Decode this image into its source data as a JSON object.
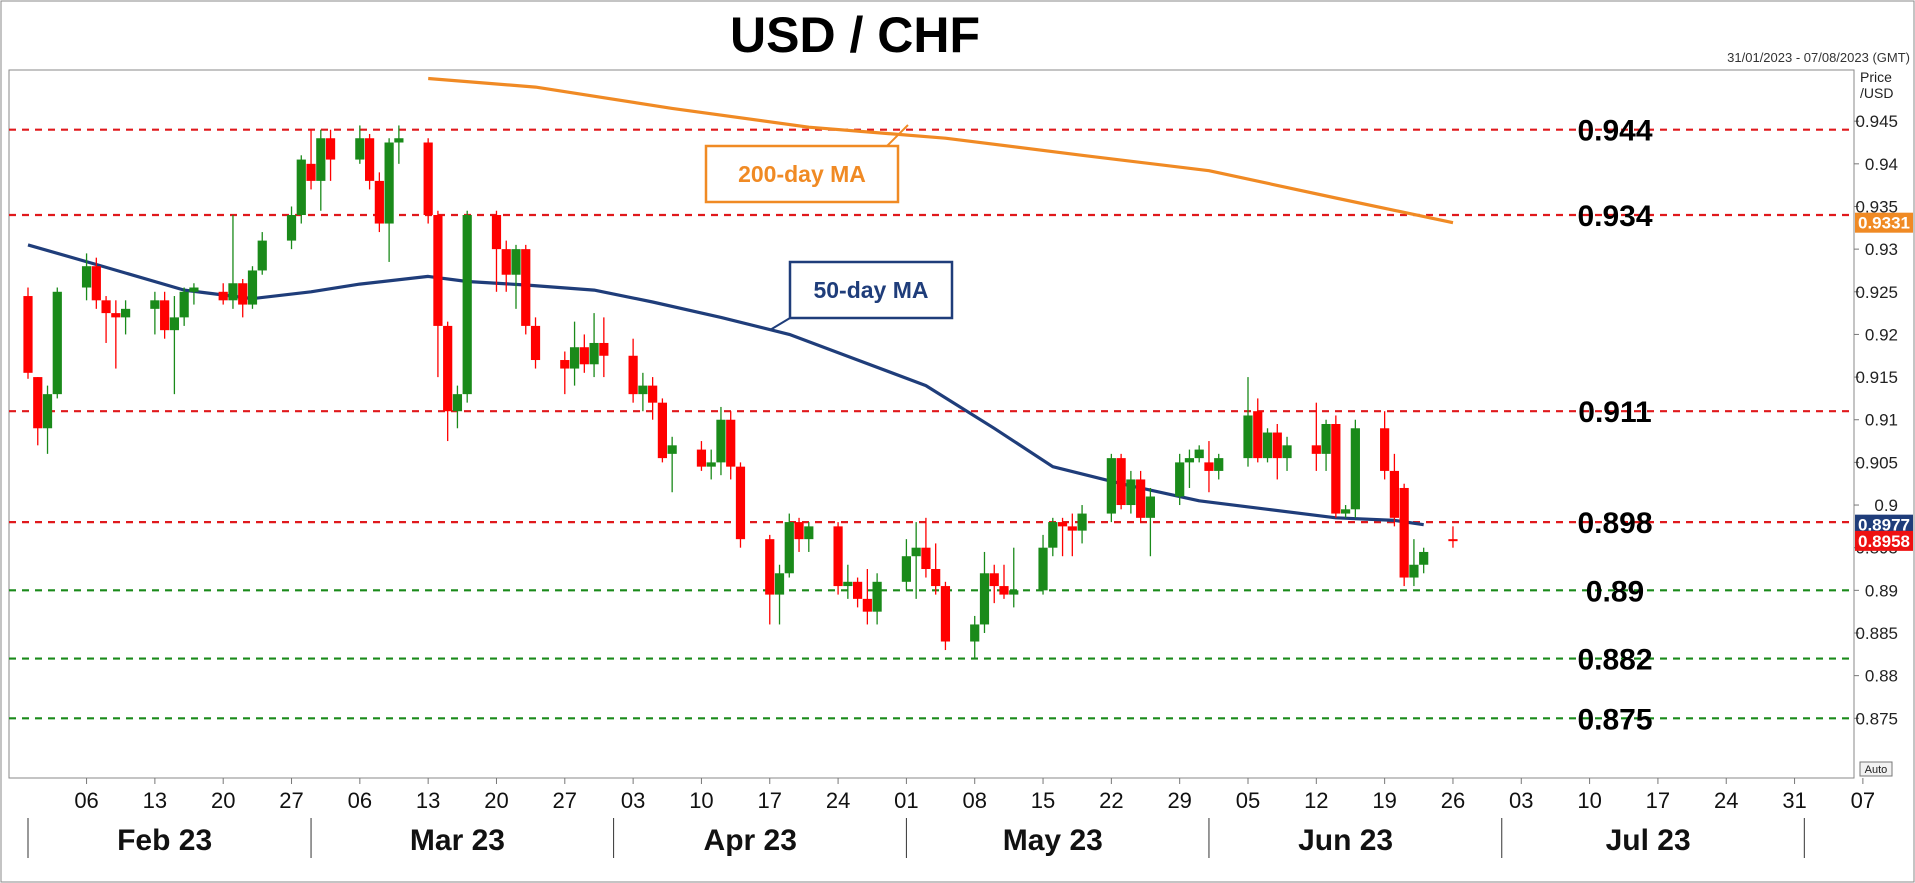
{
  "title": "USD / CHF",
  "date_range": "31/01/2023 - 07/08/2023 (GMT)",
  "axis_title_line1": "Price",
  "axis_title_line2": "/USD",
  "auto_label": "Auto",
  "colors": {
    "up": "#1a8a1a",
    "down": "#ff0000",
    "ma50": "#1f3d7a",
    "ma200": "#f08a24",
    "resistance": "#e0191c",
    "support": "#1a8a1a",
    "current_tag": "#ee1111"
  },
  "chart_data": {
    "type": "candlestick",
    "title": "USD / CHF",
    "ylim": [
      0.868,
      0.951
    ],
    "y_ticks": [
      "0.875",
      "0.88",
      "0.885",
      "0.89",
      "0.895",
      "0.9",
      "0.905",
      "0.91",
      "0.915",
      "0.92",
      "0.925",
      "0.93",
      "0.935",
      "0.94",
      "0.945"
    ],
    "x_day_ticks": [
      {
        "label": "06",
        "date": "2023-02-06"
      },
      {
        "label": "13",
        "date": "2023-02-13"
      },
      {
        "label": "20",
        "date": "2023-02-20"
      },
      {
        "label": "27",
        "date": "2023-02-27"
      },
      {
        "label": "06",
        "date": "2023-03-06"
      },
      {
        "label": "13",
        "date": "2023-03-13"
      },
      {
        "label": "20",
        "date": "2023-03-20"
      },
      {
        "label": "27",
        "date": "2023-03-27"
      },
      {
        "label": "03",
        "date": "2023-04-03"
      },
      {
        "label": "10",
        "date": "2023-04-10"
      },
      {
        "label": "17",
        "date": "2023-04-17"
      },
      {
        "label": "24",
        "date": "2023-04-24"
      },
      {
        "label": "01",
        "date": "2023-05-01"
      },
      {
        "label": "08",
        "date": "2023-05-08"
      },
      {
        "label": "15",
        "date": "2023-05-15"
      },
      {
        "label": "22",
        "date": "2023-05-22"
      },
      {
        "label": "29",
        "date": "2023-05-29"
      },
      {
        "label": "05",
        "date": "2023-06-05"
      },
      {
        "label": "12",
        "date": "2023-06-12"
      },
      {
        "label": "19",
        "date": "2023-06-19"
      },
      {
        "label": "26",
        "date": "2023-06-26"
      },
      {
        "label": "03",
        "date": "2023-07-03"
      },
      {
        "label": "10",
        "date": "2023-07-10"
      },
      {
        "label": "17",
        "date": "2023-07-17"
      },
      {
        "label": "24",
        "date": "2023-07-24"
      },
      {
        "label": "31",
        "date": "2023-07-31"
      },
      {
        "label": "07",
        "date": "2023-08-07"
      }
    ],
    "x_months": [
      {
        "label": "Feb 23",
        "date": "2023-02-14"
      },
      {
        "label": "Mar 23",
        "date": "2023-03-16"
      },
      {
        "label": "Apr 23",
        "date": "2023-04-15"
      },
      {
        "label": "May 23",
        "date": "2023-05-16"
      },
      {
        "label": "Jun 23",
        "date": "2023-06-15"
      },
      {
        "label": "Jul 23",
        "date": "2023-07-16"
      }
    ],
    "x_month_separators": [
      "2023-03-01",
      "2023-04-01",
      "2023-05-01",
      "2023-06-01",
      "2023-07-01",
      "2023-08-01"
    ],
    "candles": [
      {
        "d": "2023-01-31",
        "o": 0.9245,
        "h": 0.9255,
        "l": 0.9148,
        "c": 0.9155
      },
      {
        "d": "2023-02-01",
        "o": 0.915,
        "h": 0.915,
        "l": 0.907,
        "c": 0.909
      },
      {
        "d": "2023-02-02",
        "o": 0.909,
        "h": 0.914,
        "l": 0.906,
        "c": 0.913
      },
      {
        "d": "2023-02-03",
        "o": 0.913,
        "h": 0.9255,
        "l": 0.9125,
        "c": 0.925
      },
      {
        "d": "2023-02-06",
        "o": 0.9255,
        "h": 0.9295,
        "l": 0.924,
        "c": 0.928
      },
      {
        "d": "2023-02-07",
        "o": 0.928,
        "h": 0.929,
        "l": 0.923,
        "c": 0.924
      },
      {
        "d": "2023-02-08",
        "o": 0.924,
        "h": 0.9245,
        "l": 0.919,
        "c": 0.9225
      },
      {
        "d": "2023-02-09",
        "o": 0.9225,
        "h": 0.924,
        "l": 0.916,
        "c": 0.922
      },
      {
        "d": "2023-02-10",
        "o": 0.922,
        "h": 0.924,
        "l": 0.92,
        "c": 0.923
      },
      {
        "d": "2023-02-13",
        "o": 0.923,
        "h": 0.925,
        "l": 0.92,
        "c": 0.924
      },
      {
        "d": "2023-02-14",
        "o": 0.924,
        "h": 0.925,
        "l": 0.9195,
        "c": 0.9205
      },
      {
        "d": "2023-02-15",
        "o": 0.9205,
        "h": 0.9245,
        "l": 0.913,
        "c": 0.922
      },
      {
        "d": "2023-02-16",
        "o": 0.922,
        "h": 0.9255,
        "l": 0.921,
        "c": 0.925
      },
      {
        "d": "2023-02-17",
        "o": 0.925,
        "h": 0.926,
        "l": 0.9235,
        "c": 0.9255
      },
      {
        "d": "2023-02-20",
        "o": 0.925,
        "h": 0.926,
        "l": 0.9235,
        "c": 0.924
      },
      {
        "d": "2023-02-21",
        "o": 0.924,
        "h": 0.934,
        "l": 0.923,
        "c": 0.926
      },
      {
        "d": "2023-02-22",
        "o": 0.926,
        "h": 0.9265,
        "l": 0.922,
        "c": 0.9235
      },
      {
        "d": "2023-02-23",
        "o": 0.9235,
        "h": 0.928,
        "l": 0.923,
        "c": 0.9275
      },
      {
        "d": "2023-02-24",
        "o": 0.9275,
        "h": 0.932,
        "l": 0.927,
        "c": 0.931
      },
      {
        "d": "2023-02-27",
        "o": 0.931,
        "h": 0.935,
        "l": 0.93,
        "c": 0.934
      },
      {
        "d": "2023-02-28",
        "o": 0.934,
        "h": 0.941,
        "l": 0.933,
        "c": 0.9405
      },
      {
        "d": "2023-03-01",
        "o": 0.94,
        "h": 0.944,
        "l": 0.937,
        "c": 0.938
      },
      {
        "d": "2023-03-02",
        "o": 0.938,
        "h": 0.944,
        "l": 0.9345,
        "c": 0.943
      },
      {
        "d": "2023-03-03",
        "o": 0.943,
        "h": 0.944,
        "l": 0.938,
        "c": 0.9405
      },
      {
        "d": "2023-03-06",
        "o": 0.9405,
        "h": 0.9445,
        "l": 0.94,
        "c": 0.943
      },
      {
        "d": "2023-03-07",
        "o": 0.943,
        "h": 0.9435,
        "l": 0.937,
        "c": 0.938
      },
      {
        "d": "2023-03-08",
        "o": 0.938,
        "h": 0.939,
        "l": 0.932,
        "c": 0.933
      },
      {
        "d": "2023-03-09",
        "o": 0.933,
        "h": 0.943,
        "l": 0.9285,
        "c": 0.9425
      },
      {
        "d": "2023-03-10",
        "o": 0.9425,
        "h": 0.9445,
        "l": 0.94,
        "c": 0.943
      },
      {
        "d": "2023-03-13",
        "o": 0.9425,
        "h": 0.943,
        "l": 0.933,
        "c": 0.934
      },
      {
        "d": "2023-03-14",
        "o": 0.934,
        "h": 0.9345,
        "l": 0.915,
        "c": 0.921
      },
      {
        "d": "2023-03-15",
        "o": 0.921,
        "h": 0.9215,
        "l": 0.9075,
        "c": 0.911
      },
      {
        "d": "2023-03-16",
        "o": 0.911,
        "h": 0.914,
        "l": 0.909,
        "c": 0.913
      },
      {
        "d": "2023-03-17",
        "o": 0.913,
        "h": 0.9345,
        "l": 0.912,
        "c": 0.934
      },
      {
        "d": "2023-03-20",
        "o": 0.934,
        "h": 0.9345,
        "l": 0.925,
        "c": 0.93
      },
      {
        "d": "2023-03-21",
        "o": 0.93,
        "h": 0.931,
        "l": 0.925,
        "c": 0.927
      },
      {
        "d": "2023-03-22",
        "o": 0.927,
        "h": 0.9305,
        "l": 0.923,
        "c": 0.93
      },
      {
        "d": "2023-03-23",
        "o": 0.93,
        "h": 0.9305,
        "l": 0.92,
        "c": 0.921
      },
      {
        "d": "2023-03-24",
        "o": 0.921,
        "h": 0.922,
        "l": 0.916,
        "c": 0.917
      },
      {
        "d": "2023-03-27",
        "o": 0.917,
        "h": 0.918,
        "l": 0.913,
        "c": 0.916
      },
      {
        "d": "2023-03-28",
        "o": 0.916,
        "h": 0.9215,
        "l": 0.914,
        "c": 0.9185
      },
      {
        "d": "2023-03-29",
        "o": 0.9185,
        "h": 0.92,
        "l": 0.9155,
        "c": 0.9165
      },
      {
        "d": "2023-03-30",
        "o": 0.9165,
        "h": 0.9225,
        "l": 0.915,
        "c": 0.919
      },
      {
        "d": "2023-03-31",
        "o": 0.919,
        "h": 0.922,
        "l": 0.915,
        "c": 0.9175
      },
      {
        "d": "2023-04-03",
        "o": 0.9175,
        "h": 0.9195,
        "l": 0.912,
        "c": 0.913
      },
      {
        "d": "2023-04-04",
        "o": 0.913,
        "h": 0.9155,
        "l": 0.911,
        "c": 0.914
      },
      {
        "d": "2023-04-05",
        "o": 0.914,
        "h": 0.915,
        "l": 0.91,
        "c": 0.912
      },
      {
        "d": "2023-04-06",
        "o": 0.912,
        "h": 0.9125,
        "l": 0.905,
        "c": 0.9055
      },
      {
        "d": "2023-04-07",
        "o": 0.906,
        "h": 0.908,
        "l": 0.9015,
        "c": 0.907
      },
      {
        "d": "2023-04-10",
        "o": 0.9065,
        "h": 0.9075,
        "l": 0.904,
        "c": 0.9045
      },
      {
        "d": "2023-04-11",
        "o": 0.9045,
        "h": 0.9065,
        "l": 0.903,
        "c": 0.905
      },
      {
        "d": "2023-04-12",
        "o": 0.905,
        "h": 0.9115,
        "l": 0.9035,
        "c": 0.91
      },
      {
        "d": "2023-04-13",
        "o": 0.91,
        "h": 0.911,
        "l": 0.903,
        "c": 0.9045
      },
      {
        "d": "2023-04-14",
        "o": 0.9045,
        "h": 0.905,
        "l": 0.895,
        "c": 0.896
      },
      {
        "d": "2023-04-17",
        "o": 0.896,
        "h": 0.8965,
        "l": 0.886,
        "c": 0.8895
      },
      {
        "d": "2023-04-18",
        "o": 0.8895,
        "h": 0.893,
        "l": 0.886,
        "c": 0.892
      },
      {
        "d": "2023-04-19",
        "o": 0.892,
        "h": 0.899,
        "l": 0.8915,
        "c": 0.898
      },
      {
        "d": "2023-04-20",
        "o": 0.898,
        "h": 0.8985,
        "l": 0.8945,
        "c": 0.896
      },
      {
        "d": "2023-04-21",
        "o": 0.896,
        "h": 0.898,
        "l": 0.8945,
        "c": 0.8975
      },
      {
        "d": "2023-04-24",
        "o": 0.8975,
        "h": 0.898,
        "l": 0.8895,
        "c": 0.8905
      },
      {
        "d": "2023-04-25",
        "o": 0.8905,
        "h": 0.893,
        "l": 0.889,
        "c": 0.891
      },
      {
        "d": "2023-04-26",
        "o": 0.891,
        "h": 0.8915,
        "l": 0.888,
        "c": 0.889
      },
      {
        "d": "2023-04-27",
        "o": 0.889,
        "h": 0.8925,
        "l": 0.886,
        "c": 0.8875
      },
      {
        "d": "2023-04-28",
        "o": 0.8875,
        "h": 0.892,
        "l": 0.886,
        "c": 0.891
      },
      {
        "d": "2023-05-01",
        "o": 0.891,
        "h": 0.896,
        "l": 0.89,
        "c": 0.894
      },
      {
        "d": "2023-05-02",
        "o": 0.894,
        "h": 0.898,
        "l": 0.889,
        "c": 0.895
      },
      {
        "d": "2023-05-03",
        "o": 0.895,
        "h": 0.8985,
        "l": 0.8915,
        "c": 0.8925
      },
      {
        "d": "2023-05-04",
        "o": 0.8925,
        "h": 0.8955,
        "l": 0.8895,
        "c": 0.8905
      },
      {
        "d": "2023-05-05",
        "o": 0.8905,
        "h": 0.891,
        "l": 0.883,
        "c": 0.884
      },
      {
        "d": "2023-05-08",
        "o": 0.884,
        "h": 0.887,
        "l": 0.882,
        "c": 0.886
      },
      {
        "d": "2023-05-09",
        "o": 0.886,
        "h": 0.8945,
        "l": 0.885,
        "c": 0.892
      },
      {
        "d": "2023-05-10",
        "o": 0.892,
        "h": 0.893,
        "l": 0.8885,
        "c": 0.8905
      },
      {
        "d": "2023-05-11",
        "o": 0.8905,
        "h": 0.893,
        "l": 0.889,
        "c": 0.8895
      },
      {
        "d": "2023-05-12",
        "o": 0.8895,
        "h": 0.895,
        "l": 0.888,
        "c": 0.89
      },
      {
        "d": "2023-05-15",
        "o": 0.89,
        "h": 0.8965,
        "l": 0.8895,
        "c": 0.895
      },
      {
        "d": "2023-05-16",
        "o": 0.895,
        "h": 0.8985,
        "l": 0.894,
        "c": 0.898
      },
      {
        "d": "2023-05-17",
        "o": 0.898,
        "h": 0.8985,
        "l": 0.894,
        "c": 0.8975
      },
      {
        "d": "2023-05-18",
        "o": 0.8975,
        "h": 0.899,
        "l": 0.894,
        "c": 0.897
      },
      {
        "d": "2023-05-19",
        "o": 0.897,
        "h": 0.9,
        "l": 0.8955,
        "c": 0.899
      },
      {
        "d": "2023-05-22",
        "o": 0.899,
        "h": 0.906,
        "l": 0.898,
        "c": 0.9055
      },
      {
        "d": "2023-05-23",
        "o": 0.9055,
        "h": 0.906,
        "l": 0.8995,
        "c": 0.9
      },
      {
        "d": "2023-05-24",
        "o": 0.9,
        "h": 0.904,
        "l": 0.899,
        "c": 0.903
      },
      {
        "d": "2023-05-25",
        "o": 0.903,
        "h": 0.904,
        "l": 0.898,
        "c": 0.8985
      },
      {
        "d": "2023-05-26",
        "o": 0.8985,
        "h": 0.902,
        "l": 0.894,
        "c": 0.901
      },
      {
        "d": "2023-05-29",
        "o": 0.901,
        "h": 0.906,
        "l": 0.9,
        "c": 0.905
      },
      {
        "d": "2023-05-30",
        "o": 0.905,
        "h": 0.9065,
        "l": 0.902,
        "c": 0.9055
      },
      {
        "d": "2023-05-31",
        "o": 0.9055,
        "h": 0.907,
        "l": 0.905,
        "c": 0.9065
      },
      {
        "d": "2023-06-01",
        "o": 0.905,
        "h": 0.9075,
        "l": 0.9015,
        "c": 0.904
      },
      {
        "d": "2023-06-02",
        "o": 0.904,
        "h": 0.906,
        "l": 0.903,
        "c": 0.9055
      },
      {
        "d": "2023-06-05",
        "o": 0.9055,
        "h": 0.915,
        "l": 0.9045,
        "c": 0.9105
      },
      {
        "d": "2023-06-06",
        "o": 0.911,
        "h": 0.9125,
        "l": 0.905,
        "c": 0.9055
      },
      {
        "d": "2023-06-07",
        "o": 0.9055,
        "h": 0.909,
        "l": 0.905,
        "c": 0.9085
      },
      {
        "d": "2023-06-08",
        "o": 0.9085,
        "h": 0.9095,
        "l": 0.903,
        "c": 0.9055
      },
      {
        "d": "2023-06-09",
        "o": 0.9055,
        "h": 0.908,
        "l": 0.904,
        "c": 0.907
      },
      {
        "d": "2023-06-12",
        "o": 0.907,
        "h": 0.912,
        "l": 0.904,
        "c": 0.906
      },
      {
        "d": "2023-06-13",
        "o": 0.906,
        "h": 0.91,
        "l": 0.904,
        "c": 0.9095
      },
      {
        "d": "2023-06-14",
        "o": 0.9095,
        "h": 0.9105,
        "l": 0.8985,
        "c": 0.899
      },
      {
        "d": "2023-06-15",
        "o": 0.899,
        "h": 0.9,
        "l": 0.8985,
        "c": 0.8995
      },
      {
        "d": "2023-06-16",
        "o": 0.8995,
        "h": 0.91,
        "l": 0.8985,
        "c": 0.909
      },
      {
        "d": "2023-06-19",
        "o": 0.909,
        "h": 0.911,
        "l": 0.903,
        "c": 0.904
      },
      {
        "d": "2023-06-20",
        "o": 0.904,
        "h": 0.906,
        "l": 0.8975,
        "c": 0.8985
      },
      {
        "d": "2023-06-21",
        "o": 0.902,
        "h": 0.9025,
        "l": 0.8905,
        "c": 0.8915
      },
      {
        "d": "2023-06-22",
        "o": 0.8915,
        "h": 0.896,
        "l": 0.8905,
        "c": 0.893
      },
      {
        "d": "2023-06-23",
        "o": 0.893,
        "h": 0.895,
        "l": 0.892,
        "c": 0.8945
      },
      {
        "d": "2023-06-26",
        "o": 0.896,
        "h": 0.8975,
        "l": 0.895,
        "c": 0.8958
      }
    ],
    "ma50": [
      {
        "d": "2023-01-31",
        "v": 0.9305
      },
      {
        "d": "2023-02-07",
        "v": 0.9282
      },
      {
        "d": "2023-02-16",
        "v": 0.9252
      },
      {
        "d": "2023-02-23",
        "v": 0.9242
      },
      {
        "d": "2023-03-01",
        "v": 0.925
      },
      {
        "d": "2023-03-06",
        "v": 0.9259
      },
      {
        "d": "2023-03-13",
        "v": 0.9268
      },
      {
        "d": "2023-03-17",
        "v": 0.9262
      },
      {
        "d": "2023-03-23",
        "v": 0.9258
      },
      {
        "d": "2023-03-30",
        "v": 0.9252
      },
      {
        "d": "2023-04-05",
        "v": 0.9238
      },
      {
        "d": "2023-04-12",
        "v": 0.922
      },
      {
        "d": "2023-04-19",
        "v": 0.92
      },
      {
        "d": "2023-04-26",
        "v": 0.917
      },
      {
        "d": "2023-05-03",
        "v": 0.914
      },
      {
        "d": "2023-05-10",
        "v": 0.909
      },
      {
        "d": "2023-05-16",
        "v": 0.9045
      },
      {
        "d": "2023-05-23",
        "v": 0.9025
      },
      {
        "d": "2023-05-31",
        "v": 0.9005
      },
      {
        "d": "2023-06-07",
        "v": 0.8995
      },
      {
        "d": "2023-06-14",
        "v": 0.8985
      },
      {
        "d": "2023-06-20",
        "v": 0.8982
      },
      {
        "d": "2023-06-23",
        "v": 0.8977
      }
    ],
    "ma200": [
      {
        "d": "2023-03-13",
        "v": 0.95
      },
      {
        "d": "2023-03-24",
        "v": 0.949
      },
      {
        "d": "2023-04-07",
        "v": 0.9465
      },
      {
        "d": "2023-04-21",
        "v": 0.9443
      },
      {
        "d": "2023-05-05",
        "v": 0.943
      },
      {
        "d": "2023-05-19",
        "v": 0.941
      },
      {
        "d": "2023-06-01",
        "v": 0.9392
      },
      {
        "d": "2023-06-14",
        "v": 0.936
      },
      {
        "d": "2023-06-26",
        "v": 0.9331
      }
    ],
    "series": [
      {
        "name": "50-day MA",
        "current": "0.8977"
      },
      {
        "name": "200-day MA",
        "current": "0.9331"
      }
    ],
    "current_price": "0.8958",
    "levels": [
      {
        "value": 0.944,
        "label": "0.944",
        "kind": "resistance"
      },
      {
        "value": 0.934,
        "label": "0.934",
        "kind": "resistance"
      },
      {
        "value": 0.911,
        "label": "0.911",
        "kind": "resistance"
      },
      {
        "value": 0.898,
        "label": "0.898",
        "kind": "resistance"
      },
      {
        "value": 0.89,
        "label": "0.89",
        "kind": "support"
      },
      {
        "value": 0.882,
        "label": "0.882",
        "kind": "support"
      },
      {
        "value": 0.875,
        "label": "0.875",
        "kind": "support"
      }
    ],
    "grid": false,
    "legend": "none"
  }
}
